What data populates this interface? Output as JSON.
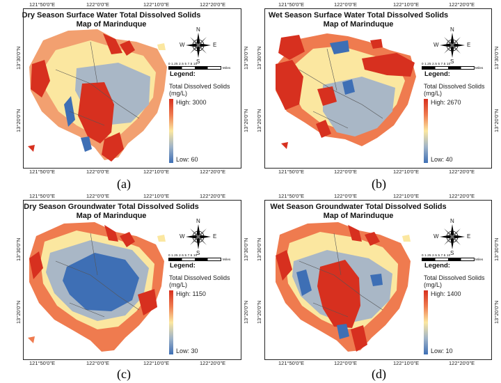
{
  "figure": {
    "panels": [
      {
        "label": "(a)",
        "title": "Dry Season Surface Water Total Dissolved Solids",
        "subtitle": "Map of Marinduque",
        "legend_title": "Legend:",
        "legend_line1": "Total Dissolved Solids",
        "legend_line2": "(mg/L)",
        "legend_high": "High: 3000",
        "legend_low": "Low: 60",
        "high_value": 3000,
        "low_value": 60
      },
      {
        "label": "(b)",
        "title": "Wet Season Surface Water Total Dissolved Solids",
        "subtitle": "Map of Marinduque",
        "legend_title": "Legend:",
        "legend_line1": "Total Dissolved Solids",
        "legend_line2": "(mg/L)",
        "legend_high": "High: 2670",
        "legend_low": "Low: 40",
        "high_value": 2670,
        "low_value": 40
      },
      {
        "label": "(c)",
        "title": "Dry Season Groundwater Total Dissolved Solids",
        "subtitle": "Map of Marinduque",
        "legend_title": "Legend:",
        "legend_line1": "Total Dissolved Solids",
        "legend_line2": "(mg/L)",
        "legend_high": "High: 1150",
        "legend_low": "Low: 30",
        "high_value": 1150,
        "low_value": 30
      },
      {
        "label": "(d)",
        "title": "Wet Season Groundwater Total Dissolved Solids",
        "subtitle": "Map of Marinduque",
        "legend_title": "Legend:",
        "legend_line1": "Total Dissolved Solids",
        "legend_line2": "(mg/L)",
        "legend_high": "High: 1400",
        "legend_low": "Low: 10",
        "high_value": 1400,
        "low_value": 10
      }
    ],
    "axes": {
      "top_ticks": [
        "121°50'0\"E",
        "122°0'0\"E",
        "122°10'0\"E",
        "122°20'0\"E"
      ],
      "bottom_ticks": [
        "121°50'0\"E",
        "122°0'0\"E",
        "122°10'0\"E",
        "122°20'0\"E"
      ],
      "left_ticks": [
        "13°30'0\"N",
        "13°20'0\"N"
      ],
      "right_ticks": [
        "13°30'0\"N",
        "13°20'0\"N"
      ]
    },
    "compass": {
      "n": "N",
      "s": "S",
      "e": "E",
      "w": "W"
    },
    "scale": {
      "numbers": "0  1.25  2.5      5        7.5      10",
      "unit": "Miles"
    },
    "colors": {
      "high": "#d7301f",
      "mid_high": "#ef7b4f",
      "mid": "#fbe7a0",
      "mid_low": "#9fb3c8",
      "low": "#3e6fb5"
    }
  }
}
